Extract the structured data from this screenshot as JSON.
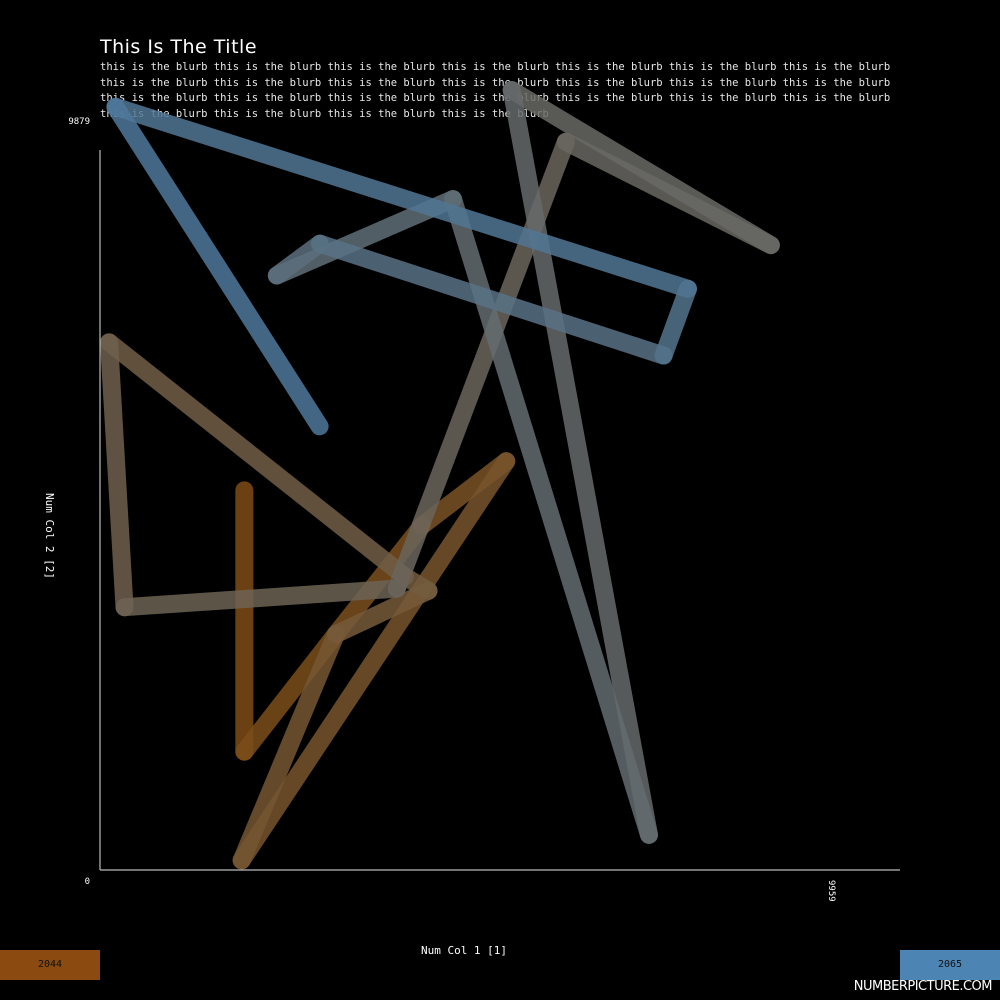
{
  "title": "This Is The Title",
  "blurb": "this is the blurb this is the blurb this is the blurb this is the blurb this is the blurb this is the blurb this is the blurb this is the blurb this is the blurb this is the blurb this is the blurb this is the blurb this is the blurb this is the blurb this is the blurb this is the blurb this is the blurb this is the blurb this is the blurb this is the blurb this is the blurb this is the blurb this is the blurb this is the blurb this is the blurb",
  "brand": "NUMBERPICTURE.COM",
  "chart_data": {
    "type": "line",
    "title": "This Is The Title",
    "xlabel": "Num Col 1 [1]",
    "ylabel": "Num Col 2 [2]",
    "xlim": [
      0,
      9959
    ],
    "ylim": [
      0,
      9879
    ],
    "x_tick_labels": [
      "9959"
    ],
    "y_tick_labels": [
      "0",
      "9879"
    ],
    "grid": false,
    "legend": {
      "placement": "bottom",
      "min_label": "2044",
      "max_label": "2065",
      "min_color": "#8a4a10",
      "max_color": "#4c84b4"
    },
    "points": [
      {
        "x": 1972,
        "y": 4975
      },
      {
        "x": 1972,
        "y": 1505
      },
      {
        "x": 3224,
        "y": 3066
      },
      {
        "x": 4401,
        "y": 4509
      },
      {
        "x": 5550,
        "y": 5361
      },
      {
        "x": 1935,
        "y": 62
      },
      {
        "x": 3224,
        "y": 3066
      },
      {
        "x": 4488,
        "y": 3642
      },
      {
        "x": 4166,
        "y": 3829
      },
      {
        "x": 124,
        "y": 6940
      },
      {
        "x": 335,
        "y": 3423
      },
      {
        "x": 4054,
        "y": 3670
      },
      {
        "x": 6364,
        "y": 9603
      },
      {
        "x": 9165,
        "y": 8231
      },
      {
        "x": 5624,
        "y": 10290
      },
      {
        "x": 7500,
        "y": 400
      },
      {
        "x": 4822,
        "y": 8842
      },
      {
        "x": 2416,
        "y": 7827
      },
      {
        "x": 3003,
        "y": 8250
      },
      {
        "x": 7699,
        "y": 6765
      },
      {
        "x": 8032,
        "y": 7651
      },
      {
        "x": 211,
        "y": 10067
      },
      {
        "x": 3000,
        "y": 5825
      }
    ],
    "colors": [
      "#7e4b15",
      "#7b4e1a",
      "#7b5020",
      "#7a5326",
      "#78552d",
      "#765733",
      "#755a3a",
      "#735c40",
      "#715e46",
      "#70604d",
      "#6d6355",
      "#6b655c",
      "#6a6762",
      "#696965",
      "#666a6b",
      "#636c71",
      "#5f6e77",
      "#5c6f7d",
      "#587285",
      "#54748c",
      "#517693",
      "#4e789b"
    ]
  }
}
